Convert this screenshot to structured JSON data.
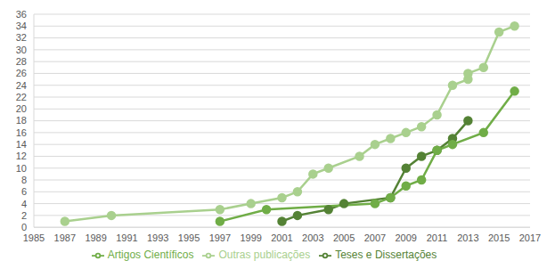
{
  "chart_data": {
    "type": "line",
    "xlim": [
      1985,
      2017
    ],
    "xticks": [
      1985,
      1987,
      1989,
      1991,
      1993,
      1995,
      1997,
      1999,
      2001,
      2003,
      2005,
      2007,
      2009,
      2011,
      2013,
      2015,
      2017
    ],
    "ylim": [
      0,
      36
    ],
    "yticks": [
      0,
      2,
      4,
      6,
      8,
      10,
      12,
      14,
      16,
      18,
      20,
      22,
      24,
      26,
      28,
      30,
      32,
      34,
      36
    ],
    "grid": true,
    "legend": "bottom",
    "marker": "circle",
    "series": [
      {
        "name": "Teses e Dissertações",
        "color": "#548235",
        "x": [
          2001,
          2002,
          2004,
          2005,
          2008,
          2009,
          2010,
          2011,
          2012,
          2013
        ],
        "values": [
          1,
          2,
          3,
          4,
          5,
          10,
          12,
          13,
          15,
          18
        ]
      },
      {
        "name": "Artigos Científicos",
        "color": "#70ad47",
        "x": [
          1997,
          2000,
          2007,
          2008,
          2009,
          2010,
          2011,
          2012,
          2014,
          2016
        ],
        "values": [
          1,
          3,
          4,
          5,
          7,
          8,
          13,
          14,
          16,
          23
        ]
      },
      {
        "name": "Outras publicações",
        "color": "#a9d08e",
        "x": [
          1987,
          1990,
          1997,
          1999,
          2001,
          2002,
          2003,
          2004,
          2006,
          2007,
          2008,
          2009,
          2010,
          2011,
          2012,
          2013,
          2013,
          2014,
          2015,
          2016
        ],
        "values": [
          1,
          2,
          3,
          4,
          5,
          6,
          9,
          10,
          12,
          14,
          15,
          16,
          17,
          19,
          24,
          25,
          26,
          27,
          33,
          34
        ]
      }
    ]
  }
}
